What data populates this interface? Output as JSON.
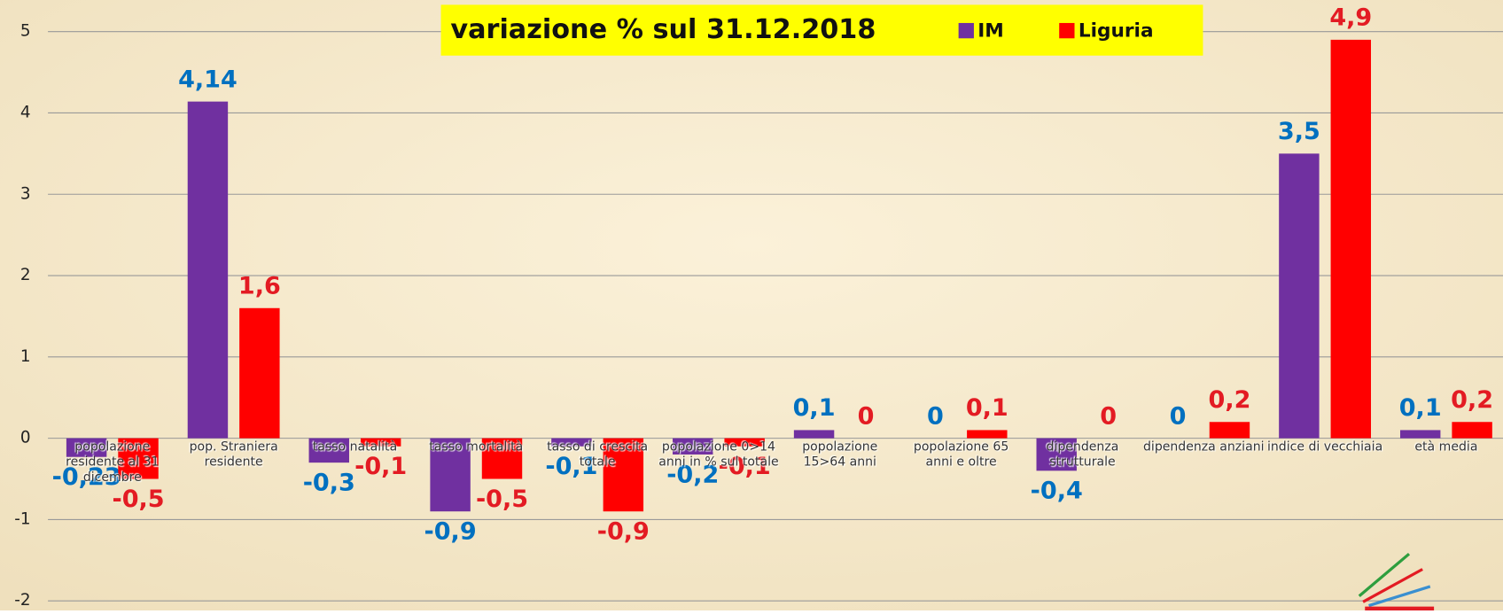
{
  "chart_data": {
    "type": "bar",
    "title": "variazione % sul 31.12.2018",
    "categories": [
      "popolazione residente al 31 dicembre",
      "pop. Straniera residente",
      "tasso natalità",
      "tasso mortalità",
      "tasso di crescita totale",
      "popolazione 0>14 anni in % sul totale",
      "popolazione 15>64 anni",
      "popolazione 65 anni e oltre",
      "dipendenza strutturale",
      "dipendenza anziani",
      "indice di vecchiaia",
      "età media"
    ],
    "series": [
      {
        "name": "IM",
        "color": "#7030a0",
        "label_color": "#0070c0",
        "values": [
          -0.23,
          4.14,
          -0.3,
          -0.9,
          -0.1,
          -0.2,
          0.1,
          0,
          -0.4,
          0,
          3.5,
          0.1
        ],
        "value_labels": [
          "-0,23",
          "4,14",
          "-0,3",
          "-0,9",
          "-0,1",
          "-0,2",
          "0,1",
          "0",
          "-0,4",
          "0",
          "3,5",
          "0,1"
        ]
      },
      {
        "name": "Liguria",
        "color": "#ff0000",
        "label_color": "#e31b23",
        "values": [
          -0.5,
          1.6,
          -0.1,
          -0.5,
          -0.9,
          -0.1,
          0,
          0.1,
          0,
          0.2,
          4.9,
          0.2
        ],
        "value_labels": [
          "-0,5",
          "1,6",
          "-0,1",
          "-0,5",
          "-0,9",
          "-0,1",
          "0",
          "0,1",
          "0",
          "0,2",
          "4,9",
          "0,2"
        ]
      }
    ],
    "ylim": [
      -2,
      5
    ],
    "yticks": [
      -2,
      -1,
      0,
      1,
      2,
      3,
      4,
      5
    ],
    "grid": true
  }
}
